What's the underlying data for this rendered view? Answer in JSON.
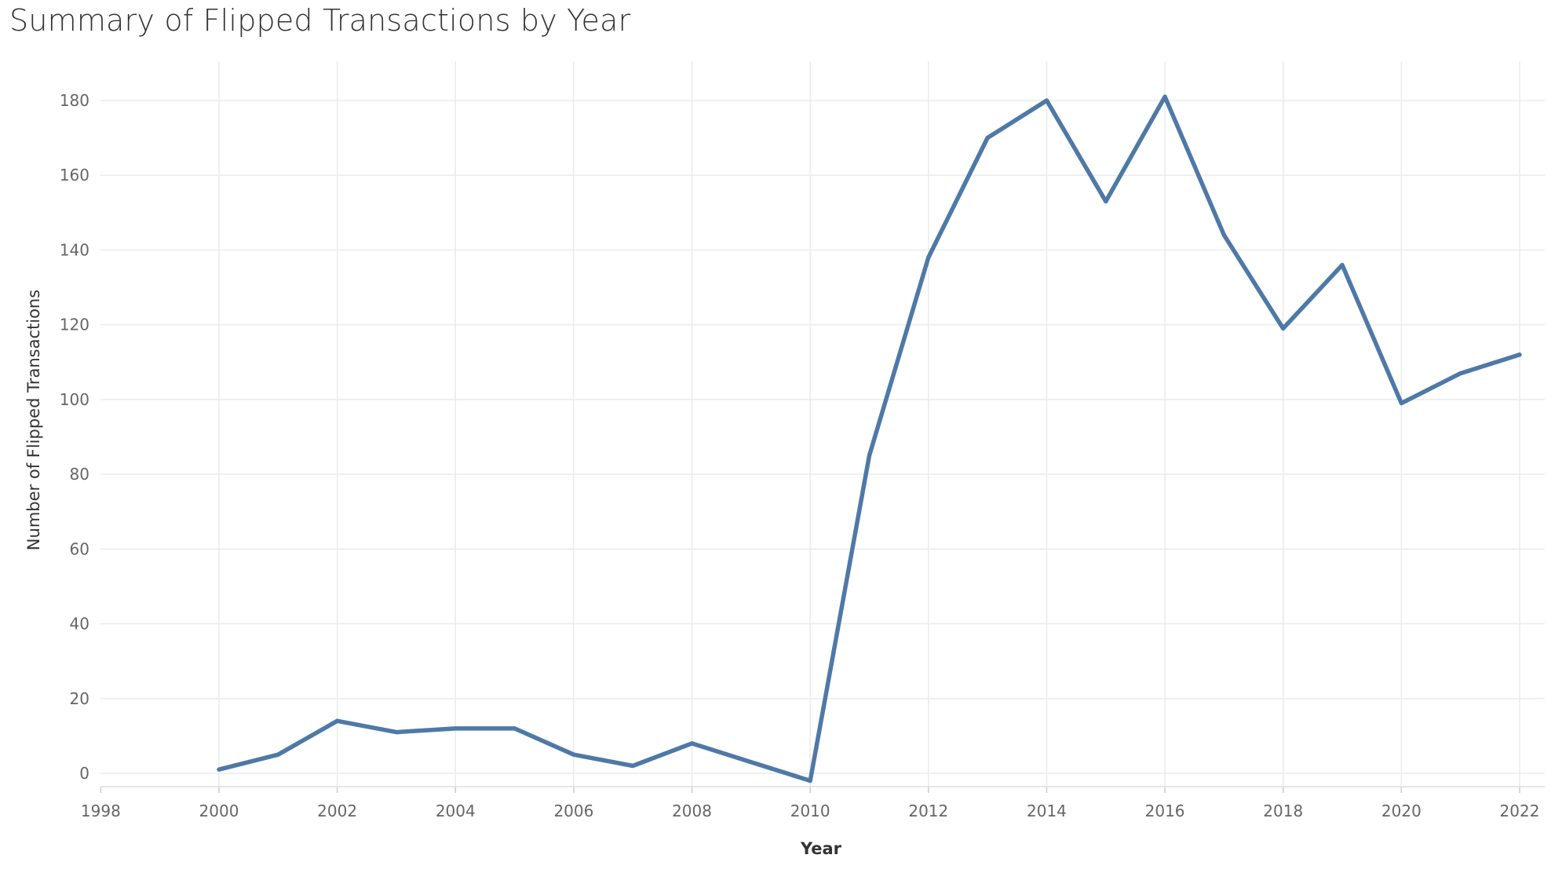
{
  "chart_data": {
    "type": "line",
    "title": "Summary of Flipped Transactions by Year",
    "xlabel": "Year",
    "ylabel": "Number of Flipped Transactions",
    "xlim": [
      1998,
      2022
    ],
    "ylim": [
      0,
      180
    ],
    "x_ticks": [
      1998,
      2000,
      2002,
      2004,
      2006,
      2008,
      2010,
      2012,
      2014,
      2016,
      2018,
      2020,
      2022
    ],
    "y_ticks": [
      0,
      20,
      40,
      60,
      80,
      100,
      120,
      140,
      160,
      180
    ],
    "grid": true,
    "legend": "none",
    "series_color": "#4e79a7",
    "x": [
      2000,
      2001,
      2002,
      2003,
      2004,
      2005,
      2006,
      2007,
      2008,
      2009,
      2010,
      2011,
      2012,
      2013,
      2014,
      2015,
      2016,
      2017,
      2018,
      2019,
      2020,
      2021,
      2022
    ],
    "values": [
      1,
      5,
      14,
      11,
      12,
      12,
      5,
      2,
      8,
      3,
      -2,
      85,
      138,
      170,
      180,
      153,
      181,
      144,
      119,
      136,
      99,
      107,
      112
    ]
  }
}
